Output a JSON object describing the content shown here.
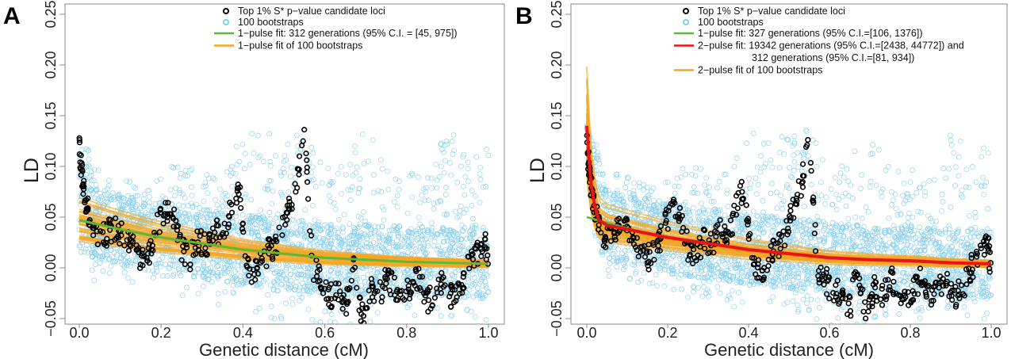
{
  "chart_data": [
    {
      "panel": "A",
      "type": "scatter",
      "xlabel": "Genetic distance (cM)",
      "ylabel": "LD",
      "xlim": [
        0,
        1
      ],
      "ylim": [
        -0.05,
        0.25
      ],
      "xticks": [
        "0.0",
        "0.2",
        "0.4",
        "0.6",
        "0.8",
        "1.0"
      ],
      "yticks": [
        "-0.05",
        "0.00",
        "0.05",
        "0.10",
        "0.15",
        "0.20",
        "0.25"
      ],
      "legend_position": "top-right",
      "legend": [
        {
          "label": "Top 1% S* p−value candidate loci",
          "kind": "point",
          "color": "#000000"
        },
        {
          "label": "100 bootstraps",
          "kind": "point",
          "color": "#87ceeb"
        },
        {
          "label": "1−pulse fit: 312 generations (95% C.I. = [45, 975])",
          "kind": "line",
          "color": "#5cb83a"
        },
        {
          "label": "1−pulse fit of 100 bootstraps",
          "kind": "line",
          "color": "#f5a623"
        }
      ],
      "bootstrap_envelope": {
        "x": [
          0,
          0.05,
          0.1,
          0.15,
          0.2,
          0.25,
          0.3,
          0.35,
          0.4,
          0.45,
          0.5,
          0.55,
          0.6,
          0.65,
          0.7,
          0.75,
          0.8,
          0.85,
          0.9,
          0.95,
          1.0
        ],
        "low": [
          -0.02,
          -0.01,
          -0.01,
          -0.02,
          -0.02,
          -0.03,
          -0.03,
          -0.04,
          -0.04,
          -0.05,
          -0.05,
          -0.05,
          -0.06,
          -0.06,
          -0.06,
          -0.05,
          -0.05,
          -0.05,
          -0.05,
          -0.05,
          -0.06
        ],
        "high": [
          0.15,
          0.1,
          0.09,
          0.08,
          0.09,
          0.11,
          0.09,
          0.1,
          0.13,
          0.14,
          0.13,
          0.14,
          0.1,
          0.11,
          0.14,
          0.1,
          0.1,
          0.09,
          0.14,
          0.11,
          0.13
        ]
      },
      "candidate_loci": {
        "x": [
          0.0,
          0.005,
          0.01,
          0.02,
          0.03,
          0.05,
          0.07,
          0.09,
          0.11,
          0.13,
          0.15,
          0.17,
          0.19,
          0.21,
          0.23,
          0.25,
          0.27,
          0.29,
          0.31,
          0.33,
          0.35,
          0.37,
          0.39,
          0.41,
          0.43,
          0.45,
          0.47,
          0.49,
          0.51,
          0.53,
          0.55,
          0.57,
          0.59,
          0.61,
          0.63,
          0.65,
          0.67,
          0.69,
          0.71,
          0.73,
          0.75,
          0.77,
          0.79,
          0.81,
          0.83,
          0.85,
          0.87,
          0.89,
          0.91,
          0.93,
          0.95,
          0.97,
          0.99,
          1.0
        ],
        "y": [
          0.12,
          0.1,
          0.08,
          0.06,
          0.04,
          0.03,
          0.035,
          0.04,
          0.03,
          0.02,
          0.01,
          0.015,
          0.04,
          0.06,
          0.05,
          0.02,
          0.01,
          0.03,
          0.02,
          0.04,
          0.03,
          0.06,
          0.08,
          0.0,
          -0.005,
          0.01,
          0.02,
          0.03,
          0.06,
          0.08,
          0.135,
          0.0,
          -0.01,
          -0.03,
          -0.02,
          -0.04,
          0.0,
          -0.05,
          -0.02,
          -0.03,
          -0.01,
          -0.02,
          -0.03,
          -0.02,
          -0.01,
          -0.035,
          -0.02,
          -0.01,
          -0.03,
          -0.02,
          0.0,
          0.01,
          0.03,
          -0.005
        ]
      },
      "fit_curve": {
        "name": "1-pulse fit",
        "color": "#5cb83a",
        "x": [
          0,
          0.1,
          0.2,
          0.3,
          0.4,
          0.5,
          0.6,
          0.7,
          0.8,
          0.9,
          1.0
        ],
        "y": [
          0.047,
          0.038,
          0.03,
          0.024,
          0.018,
          0.014,
          0.01,
          0.008,
          0.006,
          0.005,
          0.004
        ]
      }
    },
    {
      "panel": "B",
      "type": "scatter",
      "xlabel": "Genetic distance (cM)",
      "ylabel": "LD",
      "xlim": [
        0,
        1
      ],
      "ylim": [
        -0.05,
        0.25
      ],
      "xticks": [
        "0.0",
        "0.2",
        "0.4",
        "0.6",
        "0.8",
        "1.0"
      ],
      "yticks": [
        "-0.05",
        "0.00",
        "0.05",
        "0.10",
        "0.15",
        "0.20",
        "0.25"
      ],
      "legend_position": "top-right",
      "legend": [
        {
          "label": "Top 1% S* p−value candidate loci",
          "kind": "point",
          "color": "#000000"
        },
        {
          "label": "100 bootstraps",
          "kind": "point",
          "color": "#87ceeb"
        },
        {
          "label": "1−pulse fit: 327 generations (95% C.I.=[106, 1376])",
          "kind": "line",
          "color": "#5cb83a"
        },
        {
          "label": "2−pulse fit: 19342 generations (95% C.I.=[2438, 44772]) and",
          "kind": "line",
          "color": "#e8141c"
        },
        {
          "label": "312  generations (95% C.I.=[81, 934])",
          "kind": "none",
          "color": ""
        },
        {
          "label": "2−pulse fit of 100 bootstraps",
          "kind": "line",
          "color": "#f5a623"
        }
      ],
      "bootstrap_envelope": {
        "x": [
          0,
          0.05,
          0.1,
          0.15,
          0.2,
          0.25,
          0.3,
          0.35,
          0.4,
          0.45,
          0.5,
          0.55,
          0.6,
          0.65,
          0.7,
          0.75,
          0.8,
          0.85,
          0.9,
          0.95,
          1.0
        ],
        "low": [
          -0.02,
          -0.01,
          -0.01,
          -0.02,
          -0.02,
          -0.03,
          -0.03,
          -0.04,
          -0.04,
          -0.05,
          -0.05,
          -0.05,
          -0.06,
          -0.06,
          -0.06,
          -0.05,
          -0.05,
          -0.05,
          -0.05,
          -0.05,
          -0.06
        ],
        "high": [
          0.15,
          0.1,
          0.09,
          0.08,
          0.09,
          0.11,
          0.09,
          0.1,
          0.13,
          0.14,
          0.13,
          0.14,
          0.1,
          0.11,
          0.14,
          0.1,
          0.1,
          0.09,
          0.14,
          0.11,
          0.13
        ]
      },
      "candidate_loci": {
        "x": [
          0.0,
          0.005,
          0.01,
          0.02,
          0.03,
          0.05,
          0.07,
          0.09,
          0.11,
          0.13,
          0.15,
          0.17,
          0.19,
          0.21,
          0.23,
          0.25,
          0.27,
          0.29,
          0.31,
          0.33,
          0.35,
          0.37,
          0.39,
          0.41,
          0.43,
          0.45,
          0.47,
          0.49,
          0.51,
          0.53,
          0.55,
          0.57,
          0.59,
          0.61,
          0.63,
          0.65,
          0.67,
          0.69,
          0.71,
          0.73,
          0.75,
          0.77,
          0.79,
          0.81,
          0.83,
          0.85,
          0.87,
          0.89,
          0.91,
          0.93,
          0.95,
          0.97,
          0.99,
          1.0
        ],
        "y": [
          0.12,
          0.1,
          0.08,
          0.06,
          0.04,
          0.03,
          0.035,
          0.04,
          0.03,
          0.02,
          0.01,
          0.015,
          0.04,
          0.06,
          0.05,
          0.02,
          0.01,
          0.03,
          0.02,
          0.04,
          0.03,
          0.06,
          0.08,
          0.0,
          -0.005,
          0.01,
          0.02,
          0.03,
          0.06,
          0.08,
          0.135,
          0.0,
          -0.01,
          -0.03,
          -0.02,
          -0.04,
          0.0,
          -0.05,
          -0.02,
          -0.03,
          -0.01,
          -0.02,
          -0.03,
          -0.02,
          -0.01,
          -0.035,
          -0.02,
          -0.01,
          -0.03,
          -0.02,
          0.0,
          0.01,
          0.03,
          -0.005
        ]
      },
      "fit_curve": {
        "name": "2-pulse fit",
        "color": "#e8141c",
        "x": [
          0,
          0.005,
          0.01,
          0.02,
          0.03,
          0.05,
          0.1,
          0.2,
          0.3,
          0.4,
          0.5,
          0.6,
          0.7,
          0.8,
          0.9,
          1.0
        ],
        "y": [
          0.14,
          0.11,
          0.085,
          0.06,
          0.047,
          0.042,
          0.038,
          0.03,
          0.024,
          0.018,
          0.014,
          0.01,
          0.008,
          0.007,
          0.005,
          0.004
        ]
      },
      "fit_curve_secondary": {
        "name": "1-pulse fit",
        "color": "#5cb83a",
        "x": [
          0,
          0.1,
          0.2,
          0.3,
          0.4,
          0.5,
          0.6,
          0.7,
          0.8,
          0.9,
          1.0
        ],
        "y": [
          0.05,
          0.039,
          0.03,
          0.024,
          0.018,
          0.014,
          0.01,
          0.008,
          0.006,
          0.005,
          0.004
        ]
      }
    }
  ]
}
